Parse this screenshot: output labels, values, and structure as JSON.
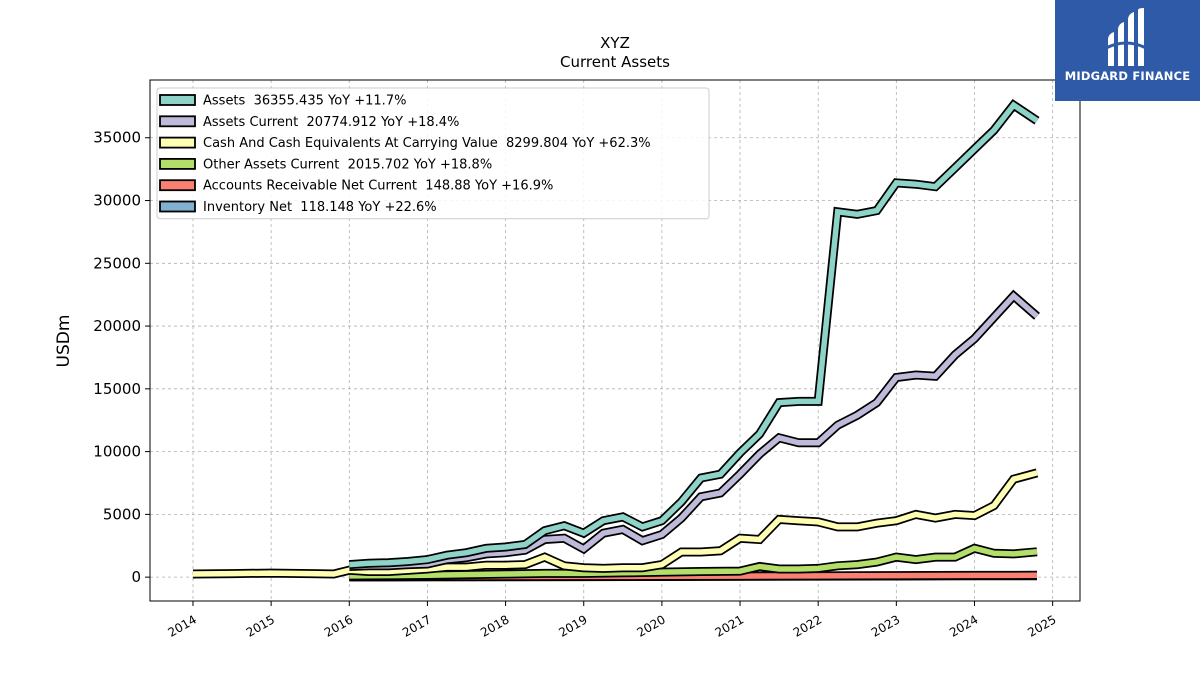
{
  "brand": {
    "name": "MIDGARD FINANCE",
    "color": "#2f5aa8"
  },
  "chart_data": {
    "type": "line",
    "title": "XYZ",
    "subtitle": "Current  Assets",
    "xlabel": "",
    "ylabel": "USDm",
    "xlim": [
      2013.45,
      2025.35
    ],
    "ylim": [
      -1900,
      39600
    ],
    "x_ticks": [
      2014,
      2015,
      2016,
      2017,
      2018,
      2019,
      2020,
      2021,
      2022,
      2023,
      2024,
      2025
    ],
    "x_tick_labels": [
      "2014",
      "2015",
      "2016",
      "2017",
      "2018",
      "2019",
      "2020",
      "2021",
      "2022",
      "2023",
      "2024",
      "2025"
    ],
    "y_ticks": [
      0,
      5000,
      10000,
      15000,
      20000,
      25000,
      30000,
      35000
    ],
    "y_tick_labels": [
      "0",
      "5000",
      "10000",
      "15000",
      "20000",
      "25000",
      "30000",
      "35000"
    ],
    "grid": true,
    "legend_position": "top-left",
    "series": [
      {
        "name": "Assets",
        "legend": "Assets  36355.435 YoY +11.7%",
        "color": "#8dd3c7",
        "x": [
          2016.0,
          2016.25,
          2016.5,
          2016.75,
          2017.0,
          2017.25,
          2017.5,
          2017.75,
          2018.0,
          2018.25,
          2018.5,
          2018.75,
          2019.0,
          2019.25,
          2019.5,
          2019.75,
          2020.0,
          2020.25,
          2020.5,
          2020.75,
          2021.0,
          2021.25,
          2021.5,
          2021.75,
          2022.0,
          2022.25,
          2022.5,
          2022.75,
          2023.0,
          2023.25,
          2023.5,
          2023.75,
          2024.0,
          2024.25,
          2024.5,
          2024.8
        ],
        "y": [
          1000,
          1100,
          1150,
          1250,
          1400,
          1750,
          1950,
          2300,
          2400,
          2600,
          3700,
          4100,
          3500,
          4500,
          4800,
          4000,
          4500,
          6000,
          7900,
          8200,
          9900,
          11400,
          13900,
          14000,
          14000,
          29100,
          28900,
          29200,
          31400,
          31300,
          31100,
          32600,
          34100,
          35600,
          37600,
          36355
        ]
      },
      {
        "name": "Assets Current",
        "legend": "Assets Current  20774.912 YoY +18.4%",
        "color": "#bebada",
        "x": [
          2016.0,
          2016.25,
          2016.5,
          2016.75,
          2017.0,
          2017.25,
          2017.5,
          2017.75,
          2018.0,
          2018.25,
          2018.5,
          2018.75,
          2019.0,
          2019.25,
          2019.5,
          2019.75,
          2020.0,
          2020.25,
          2020.5,
          2020.75,
          2021.0,
          2021.25,
          2021.5,
          2021.75,
          2022.0,
          2022.25,
          2022.5,
          2022.75,
          2023.0,
          2023.25,
          2023.5,
          2023.75,
          2024.0,
          2024.25,
          2024.5,
          2024.8
        ],
        "y": [
          850,
          900,
          900,
          1000,
          1050,
          1400,
          1550,
          1850,
          1950,
          2150,
          3000,
          3100,
          2250,
          3500,
          3800,
          2900,
          3400,
          4700,
          6400,
          6700,
          8200,
          9800,
          11100,
          10700,
          10700,
          12100,
          12900,
          13900,
          15900,
          16100,
          16000,
          17700,
          19000,
          20700,
          22400,
          20775
        ]
      },
      {
        "name": "Cash And Cash Equivalents At Carrying Value",
        "legend": "Cash And Cash Equivalents At Carrying Value  8299.804 YoY +62.3%",
        "color": "#ffffb3",
        "x": [
          2014.0,
          2014.5,
          2015.0,
          2015.5,
          2015.8,
          2016.0,
          2016.25,
          2016.5,
          2016.75,
          2017.0,
          2017.25,
          2017.5,
          2017.75,
          2018.0,
          2018.25,
          2018.5,
          2018.75,
          2019.0,
          2019.25,
          2019.5,
          2019.75,
          2020.0,
          2020.25,
          2020.5,
          2020.75,
          2021.0,
          2021.25,
          2021.5,
          2021.75,
          2022.0,
          2022.25,
          2022.5,
          2022.75,
          2023.0,
          2023.25,
          2023.5,
          2023.75,
          2024.0,
          2024.25,
          2024.5,
          2024.8
        ],
        "y": [
          250,
          280,
          320,
          280,
          250,
          550,
          450,
          450,
          550,
          650,
          800,
          800,
          950,
          950,
          1000,
          1600,
          900,
          750,
          700,
          750,
          750,
          1000,
          2000,
          2000,
          2100,
          3100,
          3000,
          4600,
          4500,
          4400,
          4000,
          4000,
          4300,
          4500,
          5000,
          4700,
          5000,
          4900,
          5700,
          7800,
          8300
        ]
      },
      {
        "name": "Other Assets Current",
        "legend": "Other Assets Current  2015.702 YoY +18.8%",
        "color": "#b3de69",
        "x": [
          2016.0,
          2016.5,
          2017.0,
          2017.5,
          2018.0,
          2018.5,
          2019.0,
          2019.5,
          2020.0,
          2020.5,
          2021.0,
          2021.25,
          2021.5,
          2021.75,
          2022.0,
          2022.25,
          2022.5,
          2022.75,
          2023.0,
          2023.25,
          2023.5,
          2023.75,
          2024.0,
          2024.25,
          2024.5,
          2024.8
        ],
        "y": [
          100,
          120,
          150,
          200,
          250,
          300,
          300,
          350,
          400,
          450,
          480,
          850,
          650,
          650,
          700,
          900,
          1000,
          1200,
          1600,
          1400,
          1600,
          1600,
          2300,
          1900,
          1850,
          2016
        ]
      },
      {
        "name": "Accounts Receivable Net Current",
        "legend": "Accounts Receivable Net Current  148.88 YoY +16.9%",
        "color": "#fb8072",
        "x": [
          2016.0,
          2017.0,
          2018.0,
          2019.0,
          2020.0,
          2021.0,
          2022.0,
          2023.0,
          2024.0,
          2024.8
        ],
        "y": [
          30,
          40,
          50,
          60,
          70,
          80,
          100,
          120,
          140,
          149
        ]
      },
      {
        "name": "Inventory Net",
        "legend": "Inventory Net  118.148 YoY +22.6%",
        "color": "#80b1d3",
        "x": [
          2016.0,
          2017.0,
          2018.0,
          2019.0,
          2020.0,
          2021.0,
          2022.0,
          2023.0,
          2024.0,
          2024.8
        ],
        "y": [
          20,
          25,
          35,
          45,
          55,
          70,
          85,
          95,
          105,
          118
        ]
      }
    ]
  }
}
